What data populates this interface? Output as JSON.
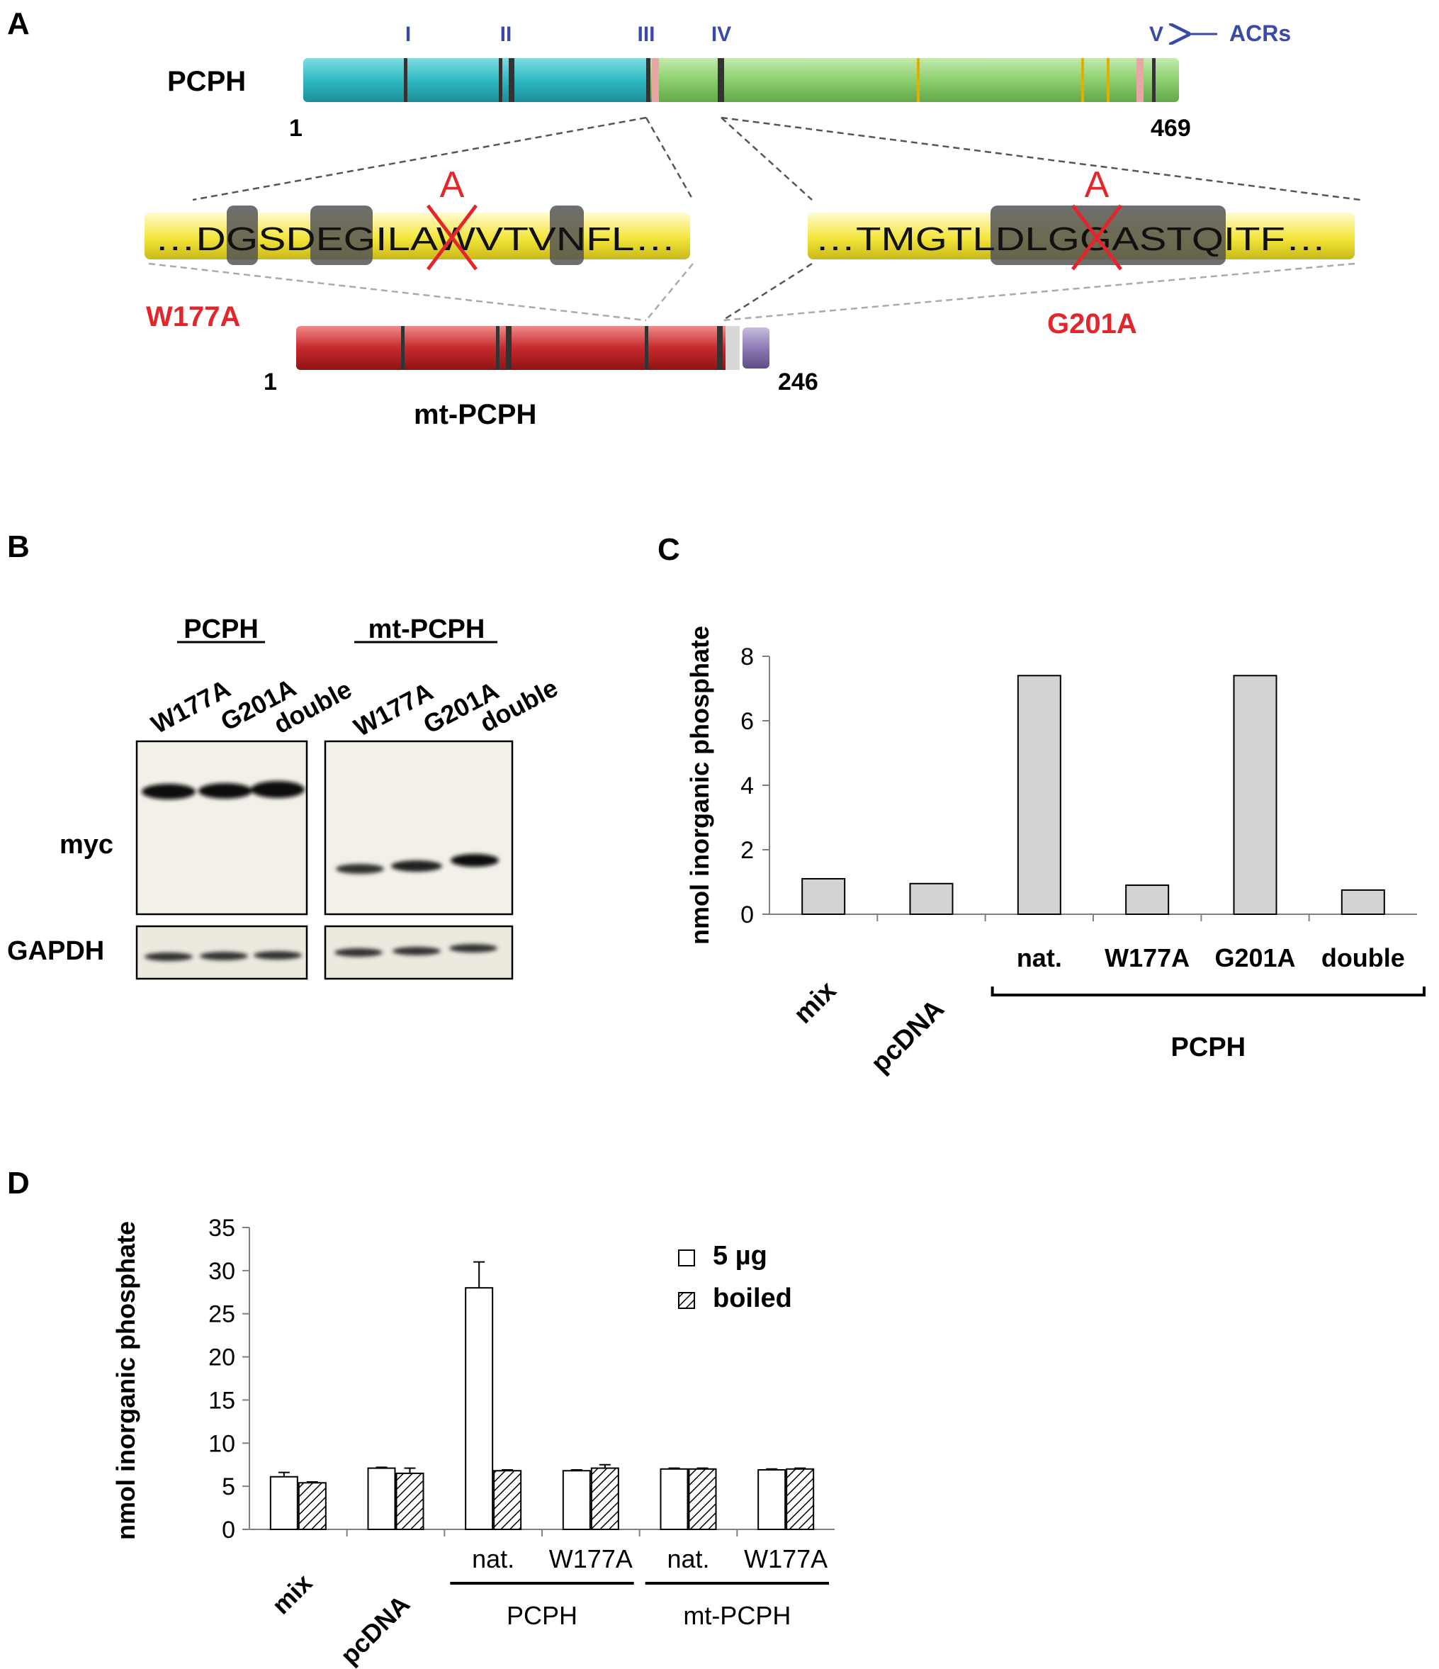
{
  "panels": {
    "A": {
      "letter": "A",
      "acr_labels": [
        "I",
        "II",
        "III",
        "IV",
        "V"
      ],
      "acr_caption": "ACRs",
      "pcph_label": "PCPH",
      "pcph_start": "1",
      "pcph_end": "469",
      "seq_left": {
        "prefix": "…D",
        "boxes": [
          "G"
        ],
        "mid1": "SD",
        "box2": "EG",
        "mid2": "ILA",
        "mutated": "W",
        "mid3": "VTV",
        "box3": "N",
        "suffix": "FL…"
      },
      "seq_left_text": "…DGSDEGILAWVTVNFL…",
      "seq_right_text": "…TMGTLDLGGASTQITF…",
      "mutation_letter": "A",
      "mut_left": "W177A",
      "mut_right": "G201A",
      "mt_start": "1",
      "mt_end": "246",
      "mt_label": "mt-PCPH"
    },
    "B": {
      "letter": "B",
      "group1": "PCPH",
      "group2": "mt-PCPH",
      "lanes": [
        "W177A",
        "G201A",
        "double"
      ],
      "row1": "myc",
      "row2": "GAPDH"
    },
    "C": {
      "letter": "C"
    },
    "D": {
      "letter": "D"
    }
  },
  "colors": {
    "pcph_left": "#2fb9c3",
    "pcph_right": "#8dcf6e",
    "seq_bar": "#f3e63a",
    "mt_bar": "#c8292c",
    "mt_tail": "#8e7ab5",
    "acr_text": "#3a4aa8",
    "mutation_red": "#e2262b",
    "bar_gray": "#d3d3d3"
  },
  "chart_data": [
    {
      "panel": "C",
      "type": "bar",
      "categories": [
        "mix",
        "pcDNA",
        "nat.",
        "W177A",
        "G201A",
        "double"
      ],
      "group_label": "PCPH",
      "group_categories": [
        "nat.",
        "W177A",
        "G201A",
        "double"
      ],
      "values": [
        1.1,
        0.95,
        7.4,
        0.9,
        7.4,
        0.75
      ],
      "ylabel": "nmol inorganic phosphate",
      "ylim": [
        0,
        8
      ],
      "yticks": [
        "0",
        "2",
        "4",
        "6",
        "8"
      ],
      "grid": false
    },
    {
      "panel": "D",
      "type": "bar",
      "categories": [
        "mix",
        "pcDNA",
        "nat.",
        "W177A",
        "nat.",
        "W177A"
      ],
      "groups": [
        {
          "label": "PCPH",
          "categories": [
            "nat.",
            "W177A"
          ]
        },
        {
          "label": "mt-PCPH",
          "categories": [
            "nat.",
            "W177A"
          ]
        }
      ],
      "series": [
        {
          "name": "5 µg",
          "values": [
            6.1,
            7.1,
            28,
            6.8,
            7.0,
            6.9
          ],
          "errors": [
            0.5,
            0.1,
            3.0,
            0.1,
            0.1,
            0.1
          ]
        },
        {
          "name": "boiled",
          "values": [
            5.4,
            6.5,
            6.8,
            7.1,
            7.0,
            7.0
          ],
          "errors": [
            0.1,
            0.6,
            0.1,
            0.4,
            0.1,
            0.1
          ]
        }
      ],
      "ylabel": "nmol inorganic phosphate",
      "ylim": [
        0,
        35
      ],
      "yticks": [
        "0",
        "5",
        "10",
        "15",
        "20",
        "25",
        "30",
        "35"
      ],
      "legend_position": "top-right",
      "grid": false
    }
  ]
}
